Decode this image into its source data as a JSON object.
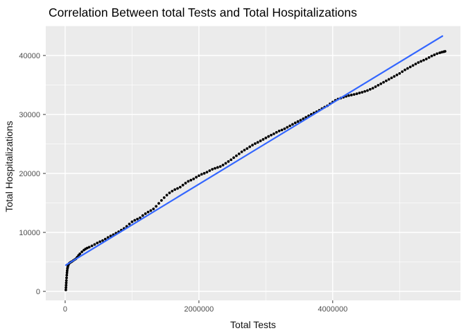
{
  "window": {
    "title": "Correlation Between total Tests and Total Hospitalizations"
  },
  "chart_data": {
    "type": "scatter",
    "title": "Correlation Between total Tests and Total Hospitalizations",
    "xlabel": "Total Tests",
    "ylabel": "Total Hospitalizations",
    "legend": false,
    "grid": true,
    "panel_bg": "#EBEBEB",
    "grid_major_color": "#FFFFFF",
    "grid_minor_color": "#F5F5F5",
    "tick_color": "#333333",
    "tick_label_color": "#4D4D4D",
    "title_color": "#000000",
    "axis_title_color": "#111111",
    "point_color": "#000000",
    "fit_line_color": "#3366FF",
    "xlim": [
      -290000,
      5910000
    ],
    "ylim": [
      -1530,
      45060
    ],
    "x_ticks": [
      0,
      2000000,
      4000000
    ],
    "x_tick_labels": [
      "0",
      "2000000",
      "4000000"
    ],
    "x_minor_ticks": [
      1000000,
      3000000,
      5000000
    ],
    "y_ticks": [
      0,
      10000,
      20000,
      30000,
      40000
    ],
    "y_tick_labels": [
      "0",
      "10000",
      "20000",
      "30000",
      "40000"
    ],
    "y_minor_ticks": [
      5000,
      15000,
      25000,
      35000,
      45000
    ],
    "series": [
      {
        "name": "daily-cumulative-observations",
        "mark": "point",
        "points": [
          [
            10000,
            250
          ],
          [
            12000,
            650
          ],
          [
            14000,
            1050
          ],
          [
            16000,
            1450
          ],
          [
            18000,
            1850
          ],
          [
            21000,
            2300
          ],
          [
            24000,
            2750
          ],
          [
            27000,
            3150
          ],
          [
            30000,
            3500
          ],
          [
            34000,
            3850
          ],
          [
            38000,
            4100
          ],
          [
            43000,
            4350
          ],
          [
            50000,
            4550
          ],
          [
            60000,
            4750
          ],
          [
            72000,
            4870
          ],
          [
            85000,
            4960
          ],
          [
            100000,
            5060
          ],
          [
            120000,
            5220
          ],
          [
            140000,
            5370
          ],
          [
            160000,
            5520
          ],
          [
            180000,
            5800
          ],
          [
            200000,
            6100
          ],
          [
            220000,
            6360
          ],
          [
            250000,
            6700
          ],
          [
            280000,
            7000
          ],
          [
            305000,
            7200
          ],
          [
            330000,
            7350
          ],
          [
            360000,
            7500
          ],
          [
            400000,
            7720
          ],
          [
            440000,
            7960
          ],
          [
            480000,
            8200
          ],
          [
            520000,
            8420
          ],
          [
            560000,
            8620
          ],
          [
            600000,
            8870
          ],
          [
            640000,
            9150
          ],
          [
            680000,
            9400
          ],
          [
            720000,
            9620
          ],
          [
            760000,
            9870
          ],
          [
            800000,
            10120
          ],
          [
            840000,
            10400
          ],
          [
            880000,
            10680
          ],
          [
            920000,
            11020
          ],
          [
            960000,
            11420
          ],
          [
            1000000,
            11800
          ],
          [
            1040000,
            12060
          ],
          [
            1080000,
            12260
          ],
          [
            1120000,
            12480
          ],
          [
            1160000,
            12860
          ],
          [
            1200000,
            13180
          ],
          [
            1240000,
            13460
          ],
          [
            1280000,
            13700
          ],
          [
            1320000,
            13980
          ],
          [
            1360000,
            14420
          ],
          [
            1400000,
            14920
          ],
          [
            1440000,
            15420
          ],
          [
            1480000,
            15900
          ],
          [
            1520000,
            16320
          ],
          [
            1560000,
            16700
          ],
          [
            1600000,
            17000
          ],
          [
            1640000,
            17260
          ],
          [
            1680000,
            17460
          ],
          [
            1720000,
            17680
          ],
          [
            1760000,
            18020
          ],
          [
            1800000,
            18360
          ],
          [
            1840000,
            18660
          ],
          [
            1880000,
            18860
          ],
          [
            1920000,
            19070
          ],
          [
            1960000,
            19360
          ],
          [
            2000000,
            19620
          ],
          [
            2040000,
            19850
          ],
          [
            2080000,
            20020
          ],
          [
            2120000,
            20220
          ],
          [
            2160000,
            20470
          ],
          [
            2200000,
            20700
          ],
          [
            2240000,
            20870
          ],
          [
            2280000,
            21020
          ],
          [
            2320000,
            21170
          ],
          [
            2360000,
            21420
          ],
          [
            2400000,
            21720
          ],
          [
            2440000,
            22020
          ],
          [
            2480000,
            22320
          ],
          [
            2520000,
            22670
          ],
          [
            2560000,
            23000
          ],
          [
            2600000,
            23320
          ],
          [
            2640000,
            23660
          ],
          [
            2680000,
            23960
          ],
          [
            2720000,
            24220
          ],
          [
            2760000,
            24520
          ],
          [
            2800000,
            24800
          ],
          [
            2840000,
            25060
          ],
          [
            2880000,
            25270
          ],
          [
            2920000,
            25520
          ],
          [
            2960000,
            25770
          ],
          [
            3000000,
            26020
          ],
          [
            3040000,
            26270
          ],
          [
            3080000,
            26500
          ],
          [
            3120000,
            26720
          ],
          [
            3160000,
            26970
          ],
          [
            3200000,
            27200
          ],
          [
            3240000,
            27370
          ],
          [
            3280000,
            27570
          ],
          [
            3320000,
            27820
          ],
          [
            3360000,
            28070
          ],
          [
            3400000,
            28320
          ],
          [
            3440000,
            28570
          ],
          [
            3480000,
            28800
          ],
          [
            3520000,
            29020
          ],
          [
            3560000,
            29270
          ],
          [
            3600000,
            29520
          ],
          [
            3640000,
            29770
          ],
          [
            3680000,
            30020
          ],
          [
            3720000,
            30260
          ],
          [
            3760000,
            30470
          ],
          [
            3800000,
            30720
          ],
          [
            3840000,
            31000
          ],
          [
            3880000,
            31250
          ],
          [
            3920000,
            31470
          ],
          [
            3960000,
            31800
          ],
          [
            4000000,
            32100
          ],
          [
            4040000,
            32400
          ],
          [
            4080000,
            32620
          ],
          [
            4120000,
            32770
          ],
          [
            4160000,
            32920
          ],
          [
            4200000,
            33070
          ],
          [
            4240000,
            33200
          ],
          [
            4280000,
            33300
          ],
          [
            4320000,
            33400
          ],
          [
            4360000,
            33510
          ],
          [
            4400000,
            33650
          ],
          [
            4440000,
            33760
          ],
          [
            4480000,
            33910
          ],
          [
            4520000,
            34060
          ],
          [
            4560000,
            34260
          ],
          [
            4600000,
            34460
          ],
          [
            4640000,
            34710
          ],
          [
            4680000,
            34960
          ],
          [
            4720000,
            35210
          ],
          [
            4760000,
            35460
          ],
          [
            4800000,
            35710
          ],
          [
            4840000,
            35960
          ],
          [
            4880000,
            36210
          ],
          [
            4920000,
            36460
          ],
          [
            4960000,
            36710
          ],
          [
            5000000,
            36960
          ],
          [
            5040000,
            37260
          ],
          [
            5080000,
            37560
          ],
          [
            5120000,
            37810
          ],
          [
            5160000,
            38060
          ],
          [
            5200000,
            38310
          ],
          [
            5240000,
            38560
          ],
          [
            5280000,
            38810
          ],
          [
            5320000,
            39010
          ],
          [
            5360000,
            39210
          ],
          [
            5400000,
            39410
          ],
          [
            5440000,
            39660
          ],
          [
            5480000,
            39910
          ],
          [
            5520000,
            40110
          ],
          [
            5560000,
            40310
          ],
          [
            5600000,
            40460
          ],
          [
            5630000,
            40560
          ],
          [
            5660000,
            40640
          ],
          [
            5680000,
            40710
          ]
        ]
      },
      {
        "name": "linear-fit",
        "mark": "line",
        "points": [
          [
            10000,
            4450
          ],
          [
            5640000,
            43300
          ]
        ]
      }
    ]
  }
}
